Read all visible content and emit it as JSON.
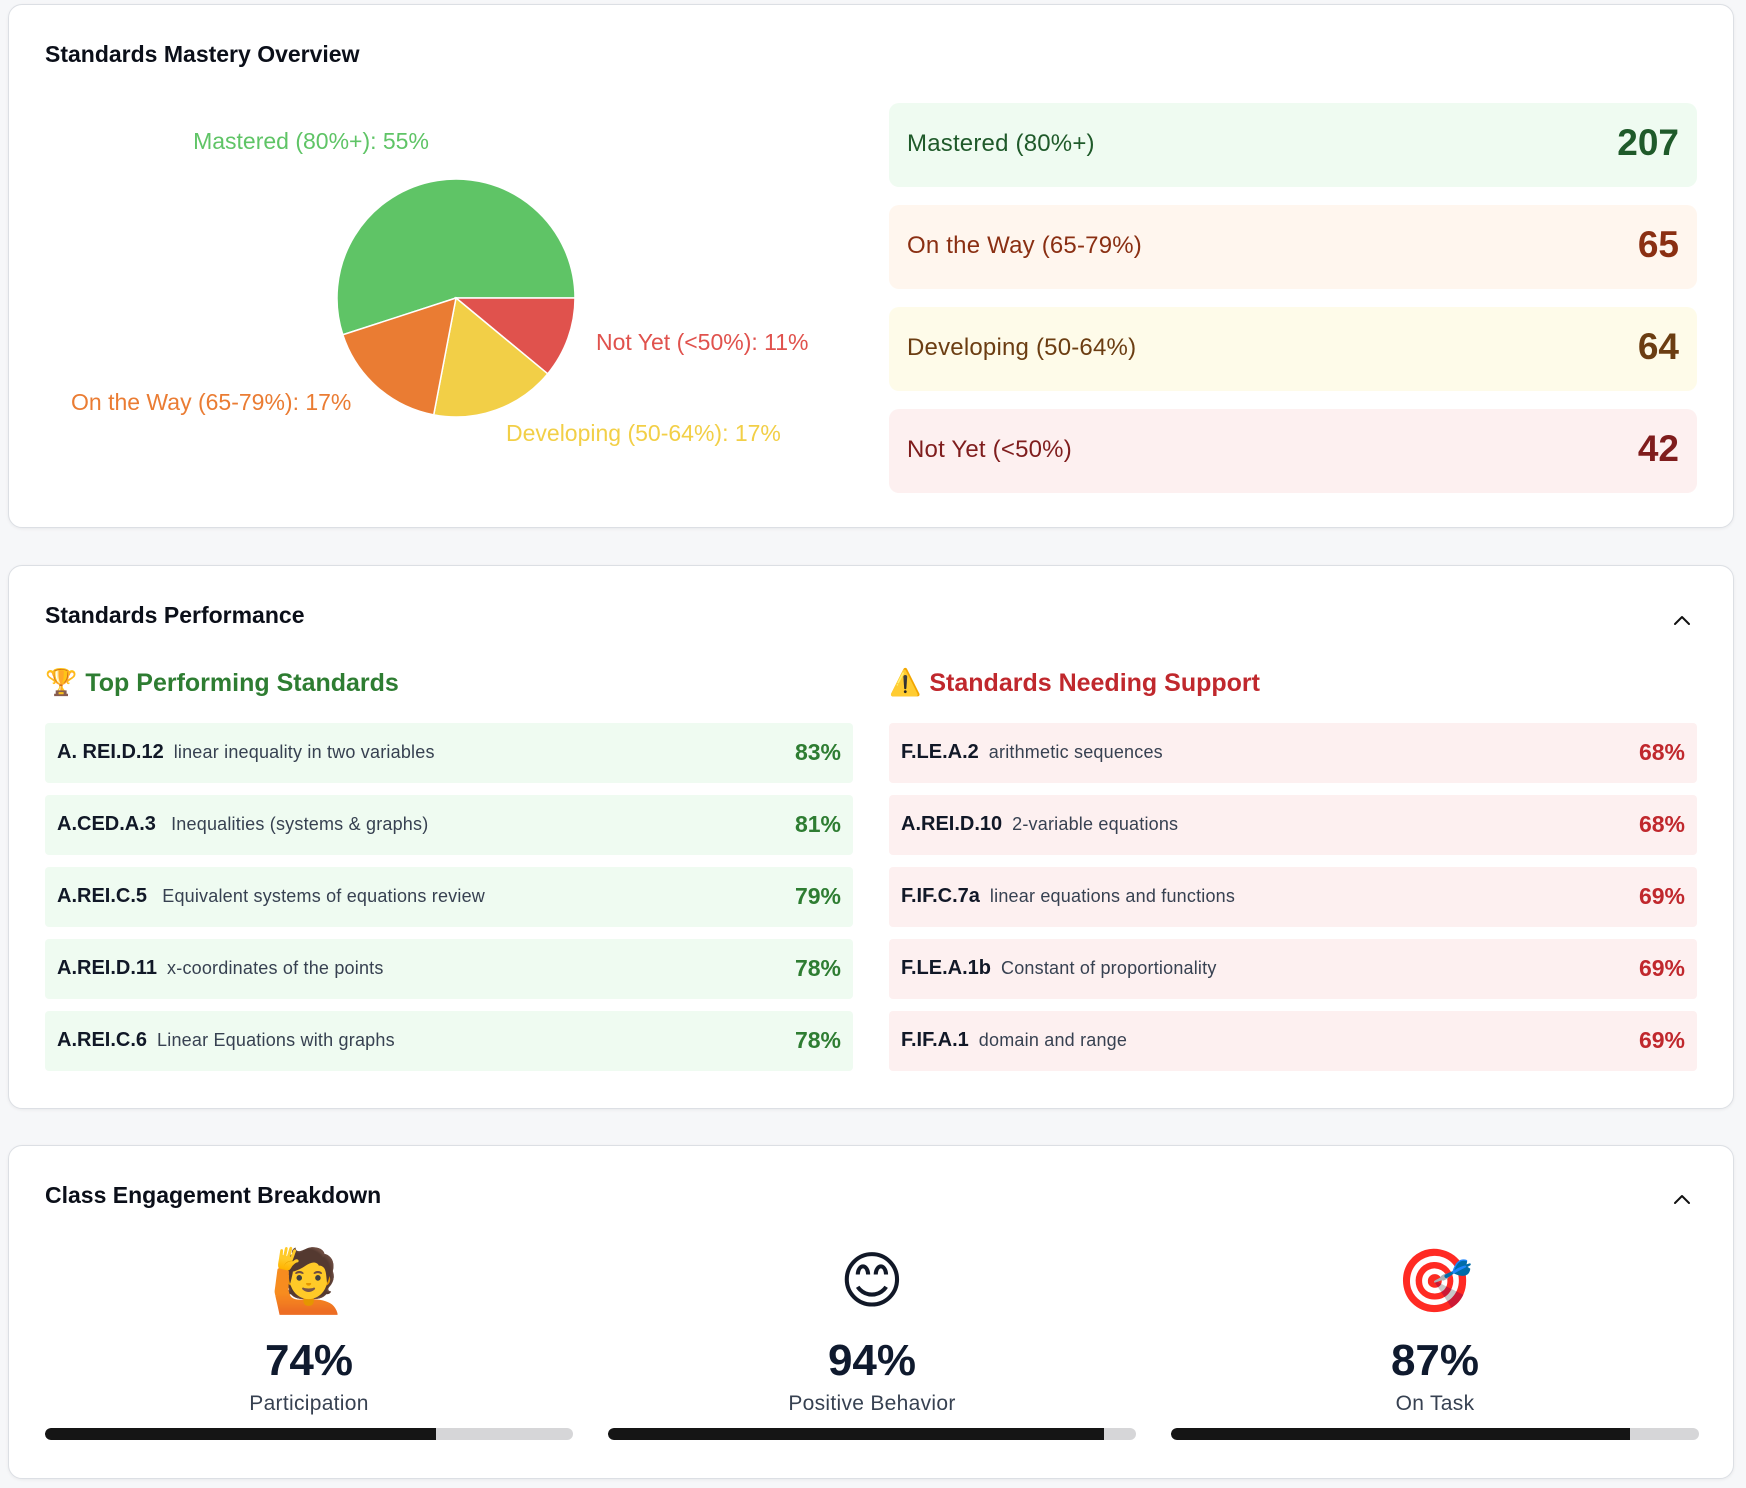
{
  "mastery": {
    "title": "Standards Mastery Overview",
    "chart_data": {
      "type": "pie",
      "slices": [
        {
          "label": "Mastered (80%+): 55%",
          "value": 55,
          "color": "#5fc466"
        },
        {
          "label": "Not Yet (<50%): 11%",
          "value": 11,
          "color": "#e0524d"
        },
        {
          "label": "Developing (50-64%): 17%",
          "value": 17,
          "color": "#f2cf47"
        },
        {
          "label": "On the Way (65-79%): 17%",
          "value": 17,
          "color": "#ea7c33"
        }
      ]
    },
    "stats": [
      {
        "label": "Mastered (80%+)",
        "value": "207",
        "bg": "#effbf1",
        "color": "#1f5a2a"
      },
      {
        "label": "On the Way (65-79%)",
        "value": "65",
        "bg": "#fff6ee",
        "color": "#8a2f12"
      },
      {
        "label": "Developing (50-64%)",
        "value": "64",
        "bg": "#fefbe9",
        "color": "#6b3d12"
      },
      {
        "label": "Not Yet (<50%)",
        "value": "42",
        "bg": "#fdf0f0",
        "color": "#7f1d1d"
      }
    ]
  },
  "performance": {
    "title": "Standards Performance",
    "top": {
      "icon": "🏆",
      "heading": "Top Performing Standards",
      "color": "#2e7d32",
      "row_bg": "#effbf1",
      "items": [
        {
          "code": "A. REI.D.12",
          "desc": "linear inequality in two variables",
          "pct": "83%"
        },
        {
          "code": "A.CED.A.3",
          "desc": " Inequalities (systems & graphs)",
          "pct": "81%"
        },
        {
          "code": "A.REI.C.5",
          "desc": " Equivalent systems of equations review",
          "pct": "79%"
        },
        {
          "code": "A.REI.D.11",
          "desc": "x-coordinates of the points",
          "pct": "78%"
        },
        {
          "code": "A.REI.C.6",
          "desc": "Linear Equations with graphs",
          "pct": "78%"
        }
      ]
    },
    "support": {
      "icon": "⚠️",
      "heading": "Standards Needing Support",
      "color": "#c0282d",
      "row_bg": "#fdf0f0",
      "items": [
        {
          "code": "F.LE.A.2",
          "desc": "arithmetic sequences",
          "pct": "68%"
        },
        {
          "code": "A.REI.D.10",
          "desc": "2-variable equations",
          "pct": "68%"
        },
        {
          "code": "F.IF.C.7a",
          "desc": "linear equations and functions",
          "pct": "69%"
        },
        {
          "code": "F.LE.A.1b",
          "desc": "Constant of proportionality",
          "pct": "69%"
        },
        {
          "code": "F.IF.A.1",
          "desc": "domain and range",
          "pct": "69%"
        }
      ]
    }
  },
  "engagement": {
    "title": "Class Engagement Breakdown",
    "metrics": [
      {
        "icon": "🙋",
        "icon_name": "raising-hand-icon",
        "value": "74%",
        "label": "Participation",
        "progress": 0.74
      },
      {
        "icon": "😊",
        "icon_name": "smiling-face-icon",
        "value": "94%",
        "label": "Positive Behavior",
        "progress": 0.94
      },
      {
        "icon": "🎯",
        "icon_name": "target-icon",
        "value": "87%",
        "label": "On Task",
        "progress": 0.87
      }
    ]
  }
}
